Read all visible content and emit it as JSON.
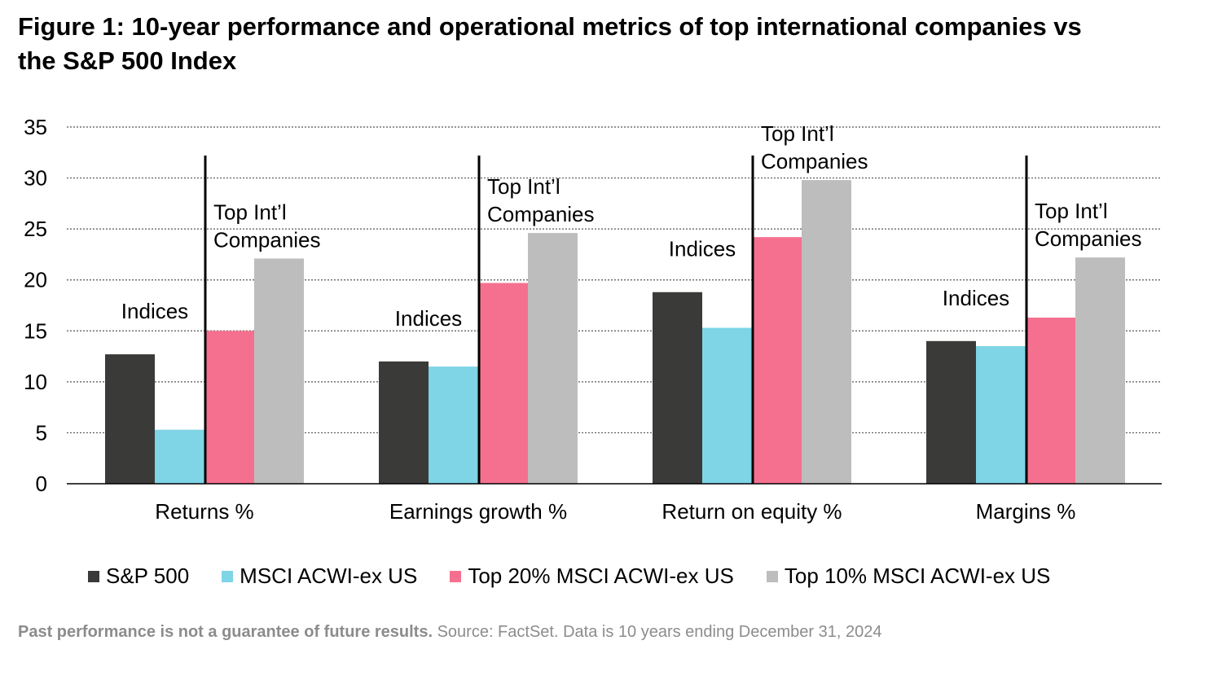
{
  "title": "Figure 1: 10-year performance and operational metrics of top international companies vs the S&P 500 Index",
  "footer": {
    "bold": "Past performance is not a guarantee of future results.",
    "source": "Source: FactSet. Data is 10 years ending December 31, 2024"
  },
  "chart_data": {
    "type": "bar",
    "categories": [
      "Returns %",
      "Earnings growth %",
      "Return on equity %",
      "Margins %"
    ],
    "series": [
      {
        "name": "S&P 500",
        "color": "#3a3b39",
        "values": [
          12.7,
          12.0,
          18.8,
          14.0
        ]
      },
      {
        "name": "MSCI ACWI-ex US",
        "color": "#7fd4e6",
        "values": [
          5.3,
          11.5,
          15.3,
          13.5
        ]
      },
      {
        "name": "Top 20% MSCI ACWI-ex US",
        "color": "#f5708f",
        "values": [
          15.0,
          19.7,
          24.2,
          16.3
        ]
      },
      {
        "name": "Top 10% MSCI ACWI-ex US",
        "color": "#bdbdbd",
        "values": [
          22.1,
          24.6,
          29.8,
          22.2
        ]
      }
    ],
    "yticks": [
      0,
      5,
      10,
      15,
      20,
      25,
      30,
      35
    ],
    "ylim": [
      0,
      35
    ],
    "grid": true,
    "legend_position": "bottom",
    "annotations": {
      "indices_label": "Indices",
      "top_label_line1": "Top Int’l",
      "top_label_line2": "Companies"
    }
  }
}
